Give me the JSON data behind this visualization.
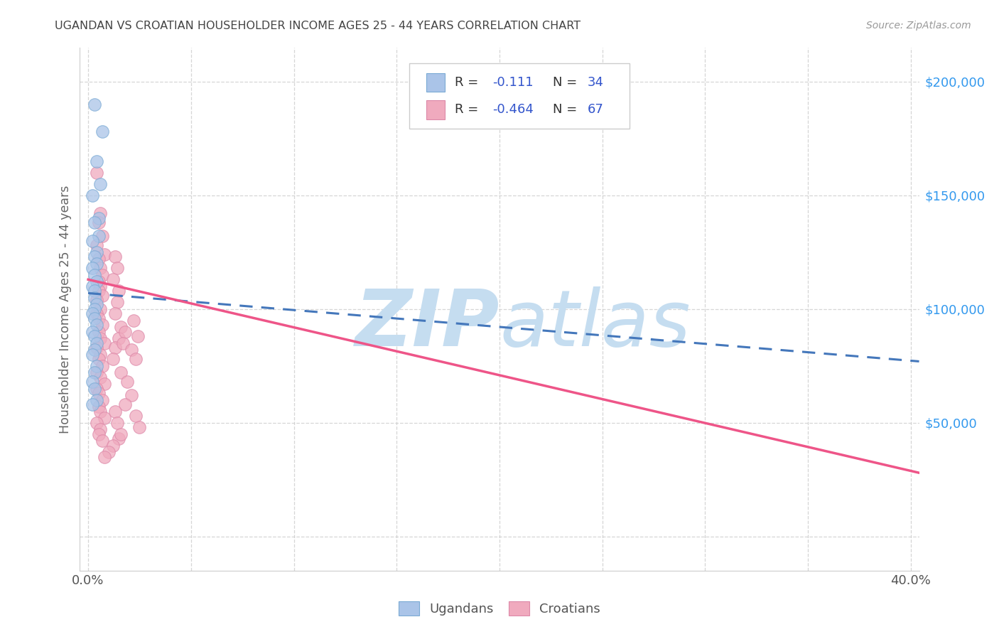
{
  "title": "UGANDAN VS CROATIAN HOUSEHOLDER INCOME AGES 25 - 44 YEARS CORRELATION CHART",
  "source": "Source: ZipAtlas.com",
  "ylabel": "Householder Income Ages 25 - 44 years",
  "xlim": [
    -0.004,
    0.404
  ],
  "ylim": [
    -15000,
    215000
  ],
  "xticks": [
    0.0,
    0.05,
    0.1,
    0.15,
    0.2,
    0.25,
    0.3,
    0.35,
    0.4
  ],
  "yticks": [
    0,
    50000,
    100000,
    150000,
    200000
  ],
  "ytick_labels": [
    "",
    "$50,000",
    "$100,000",
    "$150,000",
    "$200,000"
  ],
  "ugandan_fill": "#aac4e8",
  "ugandan_edge": "#7aaad4",
  "croatian_fill": "#f0aabe",
  "croatian_edge": "#dd88a8",
  "ugandan_line_color": "#4477bb",
  "croatian_line_color": "#ee5588",
  "watermark_zip": "ZIP",
  "watermark_atlas": "atlas",
  "watermark_color": "#c5ddf0",
  "background_color": "#ffffff",
  "legend_R_color": "#3355cc",
  "legend_text_color": "#333333",
  "grid_color": "#cccccc",
  "ug_line_x0": 0.0,
  "ug_line_x1": 0.404,
  "ug_line_y0": 107000,
  "ug_line_y1": 77000,
  "cr_line_x0": 0.0,
  "cr_line_x1": 0.404,
  "cr_line_y0": 113000,
  "cr_line_y1": 28000,
  "ugandan_scatter_x": [
    0.003,
    0.007,
    0.004,
    0.006,
    0.002,
    0.005,
    0.003,
    0.005,
    0.002,
    0.004,
    0.003,
    0.004,
    0.002,
    0.003,
    0.004,
    0.002,
    0.003,
    0.003,
    0.004,
    0.003,
    0.002,
    0.003,
    0.004,
    0.002,
    0.003,
    0.004,
    0.003,
    0.002,
    0.004,
    0.003,
    0.002,
    0.003,
    0.004,
    0.002
  ],
  "ugandan_scatter_y": [
    190000,
    178000,
    165000,
    155000,
    150000,
    140000,
    138000,
    132000,
    130000,
    125000,
    123000,
    120000,
    118000,
    115000,
    112000,
    110000,
    108000,
    105000,
    102000,
    100000,
    98000,
    96000,
    93000,
    90000,
    88000,
    85000,
    82000,
    80000,
    75000,
    72000,
    68000,
    65000,
    60000,
    58000
  ],
  "croatian_scatter_x": [
    0.004,
    0.006,
    0.005,
    0.007,
    0.004,
    0.008,
    0.005,
    0.006,
    0.007,
    0.005,
    0.006,
    0.005,
    0.007,
    0.004,
    0.006,
    0.004,
    0.005,
    0.007,
    0.005,
    0.006,
    0.008,
    0.004,
    0.006,
    0.005,
    0.007,
    0.004,
    0.006,
    0.008,
    0.004,
    0.005,
    0.007,
    0.005,
    0.006,
    0.008,
    0.004,
    0.006,
    0.005,
    0.007,
    0.013,
    0.014,
    0.012,
    0.015,
    0.014,
    0.013,
    0.016,
    0.015,
    0.013,
    0.012,
    0.018,
    0.017,
    0.022,
    0.024,
    0.021,
    0.023,
    0.016,
    0.019,
    0.021,
    0.018,
    0.023,
    0.025,
    0.015,
    0.012,
    0.01,
    0.008,
    0.013,
    0.014,
    0.016
  ],
  "croatian_scatter_y": [
    160000,
    142000,
    138000,
    132000,
    128000,
    124000,
    122000,
    118000,
    115000,
    112000,
    110000,
    108000,
    106000,
    104000,
    100000,
    98000,
    96000,
    93000,
    90000,
    87000,
    85000,
    83000,
    80000,
    78000,
    75000,
    72000,
    70000,
    67000,
    65000,
    63000,
    60000,
    57000,
    55000,
    52000,
    50000,
    47000,
    45000,
    42000,
    123000,
    118000,
    113000,
    108000,
    103000,
    98000,
    92000,
    87000,
    83000,
    78000,
    90000,
    85000,
    95000,
    88000,
    82000,
    78000,
    72000,
    68000,
    62000,
    58000,
    53000,
    48000,
    43000,
    40000,
    37000,
    35000,
    55000,
    50000,
    45000
  ]
}
